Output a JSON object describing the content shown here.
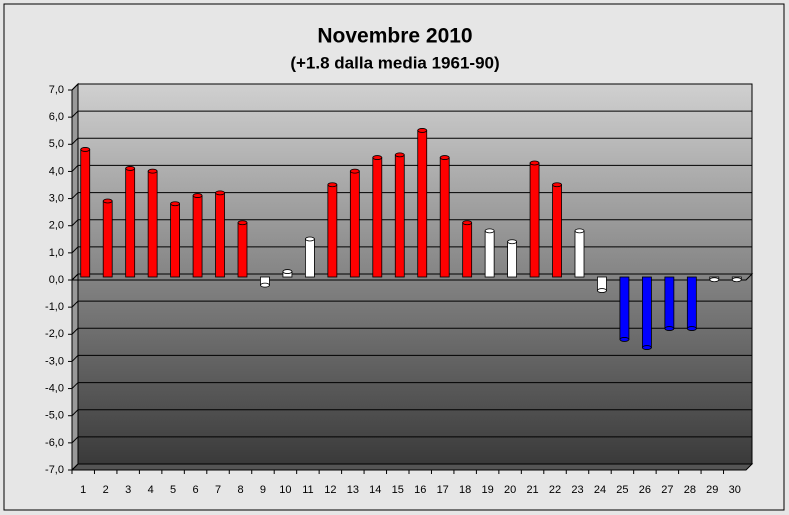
{
  "chart_data": {
    "type": "bar",
    "title": "Novembre 2010",
    "subtitle": "(+1.8 dalla media 1961-90)",
    "categories": [
      "1",
      "2",
      "3",
      "4",
      "5",
      "6",
      "7",
      "8",
      "9",
      "10",
      "11",
      "12",
      "13",
      "14",
      "15",
      "16",
      "17",
      "18",
      "19",
      "20",
      "21",
      "22",
      "23",
      "24",
      "25",
      "26",
      "27",
      "28",
      "29",
      "30"
    ],
    "values": [
      4.7,
      2.8,
      4.0,
      3.9,
      2.7,
      3.0,
      3.1,
      2.0,
      -0.3,
      0.2,
      1.4,
      3.4,
      3.9,
      4.4,
      4.5,
      5.4,
      4.4,
      2.0,
      1.7,
      1.3,
      4.2,
      3.4,
      1.7,
      -0.5,
      -2.3,
      -2.6,
      -1.9,
      -1.9,
      -0.1,
      -0.1
    ],
    "colors": [
      "#ff0000",
      "#ff0000",
      "#ff0000",
      "#ff0000",
      "#ff0000",
      "#ff0000",
      "#ff0000",
      "#ff0000",
      "#ffffff",
      "#ffffff",
      "#ffffff",
      "#ff0000",
      "#ff0000",
      "#ff0000",
      "#ff0000",
      "#ff0000",
      "#ff0000",
      "#ff0000",
      "#ffffff",
      "#ffffff",
      "#ff0000",
      "#ff0000",
      "#ffffff",
      "#ffffff",
      "#0000ff",
      "#0000ff",
      "#0000ff",
      "#0000ff",
      "#ffffff",
      "#ffffff"
    ],
    "ylim": [
      -7,
      7
    ],
    "yticks": [
      {
        "value": -7,
        "label": "-7,0"
      },
      {
        "value": -6,
        "label": "-6,0"
      },
      {
        "value": -5,
        "label": "-5,0"
      },
      {
        "value": -4,
        "label": "-4,0"
      },
      {
        "value": -3,
        "label": "-3,0"
      },
      {
        "value": -2,
        "label": "-2,0"
      },
      {
        "value": -1,
        "label": "-1,0"
      },
      {
        "value": 0,
        "label": "0,0"
      },
      {
        "value": 1,
        "label": "1,0"
      },
      {
        "value": 2,
        "label": "2,0"
      },
      {
        "value": 3,
        "label": "3,0"
      },
      {
        "value": 4,
        "label": "4,0"
      },
      {
        "value": 5,
        "label": "5,0"
      },
      {
        "value": 6,
        "label": "6,0"
      },
      {
        "value": 7,
        "label": "7,0"
      }
    ],
    "grid": true,
    "title_color": "#ff0000",
    "subtitle_color": "#333399"
  }
}
